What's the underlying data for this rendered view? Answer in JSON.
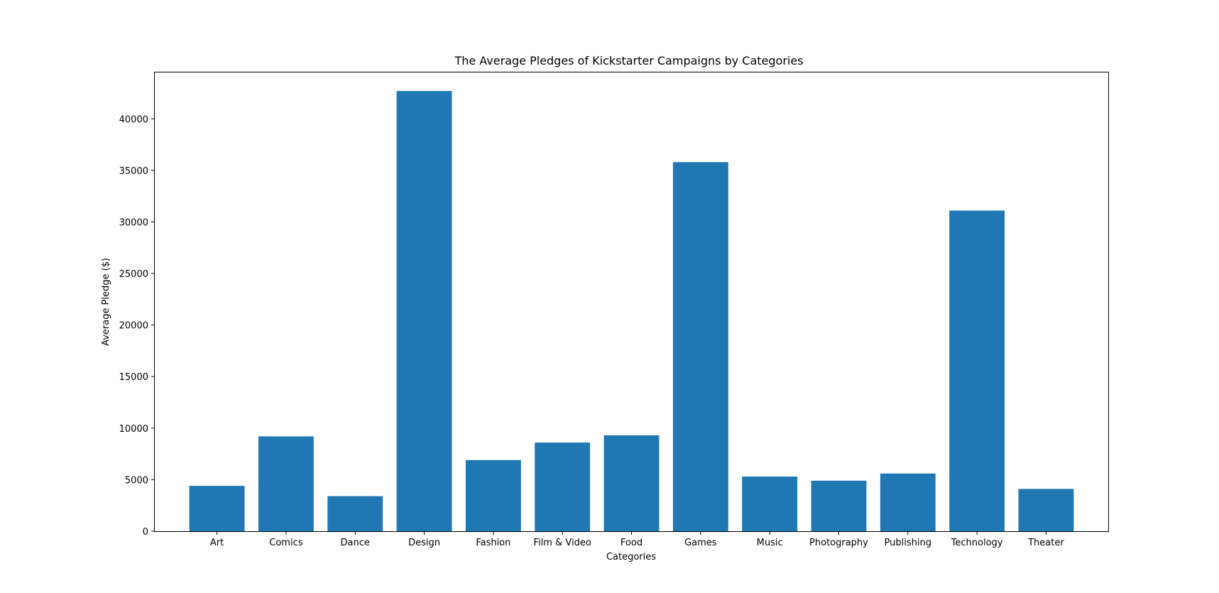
{
  "chart_data": {
    "type": "bar",
    "title": "The Average Pledges of Kickstarter Campaigns by Categories",
    "xlabel": "Categories",
    "ylabel": "Average Pledge ($)",
    "categories": [
      "Art",
      "Comics",
      "Dance",
      "Design",
      "Fashion",
      "Film & Video",
      "Food",
      "Games",
      "Music",
      "Photography",
      "Publishing",
      "Technology",
      "Theater"
    ],
    "values": [
      4400,
      9200,
      3400,
      42700,
      6900,
      8600,
      9300,
      35800,
      5300,
      4900,
      5600,
      31100,
      4100
    ],
    "ylim": [
      0,
      44500
    ],
    "yticks": [
      0,
      5000,
      10000,
      15000,
      20000,
      25000,
      30000,
      35000,
      40000
    ],
    "grid": false,
    "bar_color": "#1f77b4"
  }
}
